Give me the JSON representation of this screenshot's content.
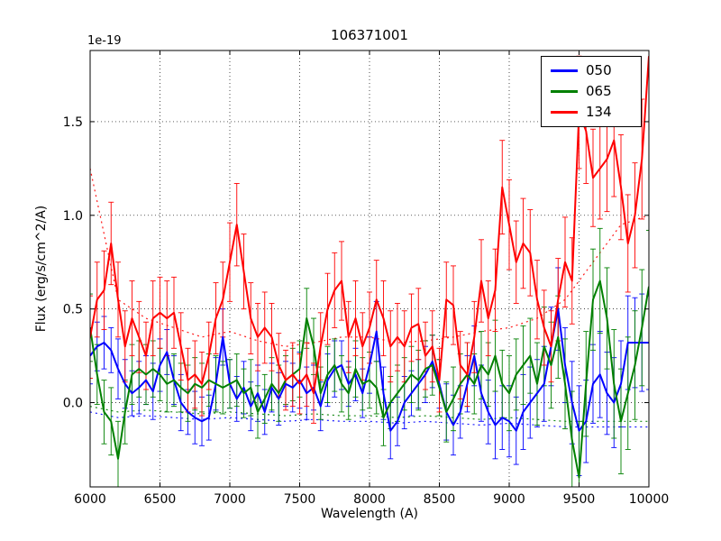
{
  "figure": {
    "background": "#ffffff",
    "frame_color": "#000000",
    "grid_style": "dotted"
  },
  "chart_data": {
    "type": "line",
    "title": "106371001",
    "xlabel": "Wavelength (A)",
    "ylabel": "Flux (erg/s/cm^2/A)",
    "offset_text": "1e-19",
    "xlim": [
      6000,
      10000
    ],
    "ylim": [
      -0.45,
      1.88
    ],
    "xticks": [
      6000,
      6500,
      7000,
      7500,
      8000,
      8500,
      9000,
      9500,
      10000
    ],
    "yticks": [
      0.0,
      0.5,
      1.0,
      1.5
    ],
    "grid": true,
    "legend_position": "upper right",
    "x": [
      6000,
      6050,
      6100,
      6150,
      6200,
      6250,
      6300,
      6350,
      6400,
      6450,
      6500,
      6550,
      6600,
      6650,
      6700,
      6750,
      6800,
      6850,
      6900,
      6950,
      7000,
      7050,
      7100,
      7150,
      7200,
      7250,
      7300,
      7350,
      7400,
      7450,
      7500,
      7550,
      7600,
      7650,
      7700,
      7750,
      7800,
      7850,
      7900,
      7950,
      8000,
      8050,
      8100,
      8150,
      8200,
      8250,
      8300,
      8350,
      8400,
      8450,
      8500,
      8550,
      8600,
      8650,
      8700,
      8750,
      8800,
      8850,
      8900,
      8950,
      9000,
      9050,
      9100,
      9150,
      9200,
      9250,
      9300,
      9350,
      9400,
      9450,
      9500,
      9550,
      9600,
      9650,
      9700,
      9750,
      9800,
      9850,
      9900,
      9950,
      10000
    ],
    "series": [
      {
        "name": "050",
        "color": "#0000ff",
        "values": [
          0.25,
          0.3,
          0.32,
          0.28,
          0.18,
          0.1,
          0.05,
          0.08,
          0.12,
          0.06,
          0.2,
          0.27,
          0.12,
          0.0,
          -0.05,
          -0.08,
          -0.1,
          -0.08,
          0.1,
          0.35,
          0.1,
          0.02,
          0.08,
          -0.02,
          0.05,
          -0.05,
          0.08,
          0.02,
          0.1,
          0.08,
          0.12,
          0.05,
          0.08,
          -0.02,
          0.12,
          0.18,
          0.2,
          0.1,
          0.15,
          0.05,
          0.2,
          0.38,
          0.05,
          -0.15,
          -0.1,
          0.0,
          0.05,
          0.1,
          0.15,
          0.22,
          0.1,
          -0.05,
          -0.12,
          -0.05,
          0.1,
          0.25,
          0.05,
          -0.05,
          -0.12,
          -0.08,
          -0.1,
          -0.15,
          -0.05,
          0.0,
          0.05,
          0.1,
          0.3,
          0.5,
          0.2,
          0.0,
          -0.15,
          -0.1,
          0.1,
          0.15,
          0.05,
          0.0,
          0.1,
          0.32,
          0.32,
          0.32,
          0.32
        ],
        "errors": [
          0.15,
          0.13,
          0.14,
          0.12,
          0.16,
          0.13,
          0.12,
          0.14,
          0.13,
          0.15,
          0.14,
          0.12,
          0.13,
          0.15,
          0.12,
          0.14,
          0.13,
          0.12,
          0.14,
          0.15,
          0.13,
          0.12,
          0.14,
          0.13,
          0.15,
          0.12,
          0.13,
          0.14,
          0.12,
          0.13,
          0.15,
          0.14,
          0.12,
          0.13,
          0.14,
          0.15,
          0.13,
          0.12,
          0.14,
          0.13,
          0.15,
          0.16,
          0.14,
          0.15,
          0.13,
          0.14,
          0.12,
          0.13,
          0.15,
          0.14,
          0.13,
          0.15,
          0.16,
          0.14,
          0.15,
          0.16,
          0.15,
          0.17,
          0.18,
          0.17,
          0.19,
          0.18,
          0.2,
          0.19,
          0.18,
          0.2,
          0.21,
          0.22,
          0.2,
          0.22,
          0.24,
          0.22,
          0.21,
          0.23,
          0.22,
          0.24,
          0.23,
          0.25,
          0.24,
          0.26,
          0.25
        ]
      },
      {
        "name": "065",
        "color": "#008000",
        "values": [
          0.4,
          0.15,
          -0.05,
          -0.1,
          -0.3,
          -0.05,
          0.15,
          0.18,
          0.15,
          0.18,
          0.15,
          0.1,
          0.12,
          0.08,
          0.05,
          0.1,
          0.08,
          0.12,
          0.1,
          0.08,
          0.1,
          0.12,
          0.05,
          0.08,
          -0.05,
          0.02,
          0.1,
          0.05,
          0.12,
          0.15,
          0.18,
          0.45,
          0.3,
          0.05,
          0.15,
          0.2,
          0.1,
          0.05,
          0.18,
          0.1,
          0.12,
          0.08,
          -0.08,
          0.0,
          0.05,
          0.1,
          0.15,
          0.12,
          0.18,
          0.2,
          0.08,
          -0.05,
          0.02,
          0.1,
          0.15,
          0.1,
          0.2,
          0.15,
          0.25,
          0.1,
          0.05,
          0.15,
          0.2,
          0.25,
          0.1,
          0.3,
          0.2,
          0.35,
          0.1,
          -0.2,
          -0.4,
          0.1,
          0.55,
          0.65,
          0.45,
          0.1,
          -0.1,
          0.05,
          0.2,
          0.4,
          0.62
        ],
        "errors": [
          0.18,
          0.16,
          0.17,
          0.18,
          0.2,
          0.17,
          0.16,
          0.15,
          0.16,
          0.15,
          0.14,
          0.15,
          0.14,
          0.13,
          0.15,
          0.14,
          0.13,
          0.14,
          0.15,
          0.14,
          0.13,
          0.14,
          0.13,
          0.15,
          0.14,
          0.13,
          0.14,
          0.15,
          0.13,
          0.14,
          0.15,
          0.16,
          0.15,
          0.14,
          0.15,
          0.14,
          0.15,
          0.14,
          0.15,
          0.14,
          0.15,
          0.14,
          0.15,
          0.14,
          0.15,
          0.14,
          0.15,
          0.16,
          0.15,
          0.16,
          0.15,
          0.16,
          0.17,
          0.16,
          0.17,
          0.16,
          0.18,
          0.17,
          0.19,
          0.18,
          0.2,
          0.19,
          0.21,
          0.2,
          0.22,
          0.21,
          0.23,
          0.22,
          0.24,
          0.26,
          0.3,
          0.28,
          0.27,
          0.28,
          0.27,
          0.29,
          0.28,
          0.3,
          0.29,
          0.31,
          0.3
        ]
      },
      {
        "name": "134",
        "color": "#ff0000",
        "values": [
          0.35,
          0.55,
          0.6,
          0.85,
          0.55,
          0.3,
          0.45,
          0.35,
          0.25,
          0.45,
          0.48,
          0.45,
          0.48,
          0.3,
          0.12,
          0.15,
          0.1,
          0.25,
          0.45,
          0.55,
          0.75,
          0.95,
          0.7,
          0.45,
          0.35,
          0.4,
          0.35,
          0.2,
          0.12,
          0.15,
          0.1,
          0.15,
          0.05,
          0.3,
          0.5,
          0.6,
          0.65,
          0.35,
          0.45,
          0.3,
          0.4,
          0.55,
          0.45,
          0.3,
          0.35,
          0.3,
          0.4,
          0.42,
          0.25,
          0.3,
          0.12,
          0.55,
          0.52,
          0.2,
          0.15,
          0.35,
          0.65,
          0.45,
          0.6,
          1.15,
          0.95,
          0.75,
          0.85,
          0.8,
          0.55,
          0.4,
          0.3,
          0.55,
          0.75,
          0.65,
          1.55,
          1.45,
          1.2,
          1.25,
          1.3,
          1.4,
          1.15,
          0.85,
          1.0,
          1.3,
          1.85
        ],
        "errors": [
          0.22,
          0.2,
          0.21,
          0.22,
          0.2,
          0.19,
          0.2,
          0.19,
          0.18,
          0.2,
          0.19,
          0.2,
          0.19,
          0.18,
          0.17,
          0.18,
          0.17,
          0.18,
          0.19,
          0.2,
          0.21,
          0.22,
          0.2,
          0.19,
          0.18,
          0.19,
          0.18,
          0.17,
          0.16,
          0.17,
          0.16,
          0.17,
          0.16,
          0.18,
          0.19,
          0.2,
          0.21,
          0.19,
          0.2,
          0.18,
          0.19,
          0.21,
          0.2,
          0.19,
          0.18,
          0.19,
          0.18,
          0.19,
          0.18,
          0.19,
          0.17,
          0.2,
          0.21,
          0.18,
          0.17,
          0.19,
          0.22,
          0.2,
          0.22,
          0.25,
          0.24,
          0.22,
          0.24,
          0.23,
          0.21,
          0.2,
          0.19,
          0.22,
          0.24,
          0.23,
          0.3,
          0.28,
          0.26,
          0.27,
          0.28,
          0.3,
          0.28,
          0.26,
          0.28,
          0.32,
          0.35
        ]
      }
    ],
    "noise_series": [
      {
        "name": "134-noise",
        "color": "#ff0000",
        "x": [
          6000,
          6200,
          6400,
          6600,
          6800,
          7000,
          7200,
          7400,
          7600,
          7800,
          8000,
          8200,
          8400,
          8600,
          8800,
          9000,
          9200,
          9400,
          9600,
          9800,
          10000
        ],
        "values": [
          1.25,
          0.55,
          0.45,
          0.4,
          0.35,
          0.38,
          0.33,
          0.3,
          0.32,
          0.35,
          0.35,
          0.32,
          0.33,
          0.35,
          0.38,
          0.4,
          0.45,
          0.55,
          0.75,
          0.95,
          1.0
        ]
      },
      {
        "name": "050-noise",
        "color": "#0000ff",
        "x": [
          6000,
          6200,
          6400,
          6600,
          6800,
          7000,
          7200,
          7400,
          7600,
          7800,
          8000,
          8200,
          8400,
          8600,
          8800,
          9000,
          9200,
          9400,
          9600,
          9800,
          10000
        ],
        "values": [
          -0.05,
          -0.08,
          -0.07,
          -0.08,
          -0.09,
          -0.08,
          -0.09,
          -0.1,
          -0.09,
          -0.1,
          -0.1,
          -0.11,
          -0.1,
          -0.11,
          -0.12,
          -0.11,
          -0.12,
          -0.13,
          -0.13,
          -0.13,
          -0.13
        ]
      },
      {
        "name": "065-noise",
        "color": "#008000",
        "x": [
          6000,
          6200,
          6400,
          6600,
          6800,
          7000,
          7200,
          7400,
          7600,
          7800,
          8000,
          8200,
          8400,
          8600,
          8800,
          9000,
          9200,
          9400,
          9600,
          9800,
          10000
        ],
        "values": [
          -0.02,
          -0.05,
          -0.04,
          -0.05,
          -0.06,
          -0.05,
          -0.06,
          -0.07,
          -0.06,
          -0.07,
          -0.07,
          -0.08,
          -0.07,
          -0.08,
          -0.09,
          -0.08,
          -0.09,
          -0.1,
          -0.1,
          -0.1,
          -0.1
        ]
      }
    ],
    "legend": {
      "entries": [
        {
          "label": "050",
          "color": "#0000ff"
        },
        {
          "label": "065",
          "color": "#008000"
        },
        {
          "label": "134",
          "color": "#ff0000"
        }
      ]
    }
  }
}
